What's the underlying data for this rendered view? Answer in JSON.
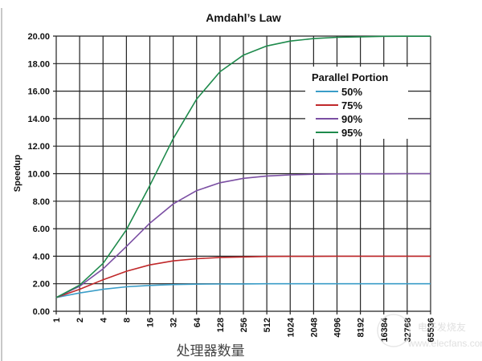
{
  "chart_data": {
    "type": "line",
    "title": "Amdahl’s Law",
    "xlabel": "处理器数量",
    "ylabel": "Speedup",
    "x": [
      1,
      2,
      4,
      8,
      16,
      32,
      64,
      128,
      256,
      512,
      1024,
      2048,
      4096,
      8192,
      16384,
      32768,
      65536
    ],
    "x_tick_labels": [
      "1",
      "2",
      "4",
      "8",
      "16",
      "32",
      "64",
      "128",
      "256",
      "512",
      "1024",
      "2048",
      "4096",
      "8192",
      "16384",
      "32768",
      "65536"
    ],
    "x_scale": "log2",
    "ylim": [
      0,
      20
    ],
    "y_ticks": [
      "0.00",
      "2.00",
      "4.00",
      "6.00",
      "8.00",
      "10.00",
      "12.00",
      "14.00",
      "16.00",
      "18.00",
      "20.00"
    ],
    "grid": true,
    "legend": {
      "title": "Parallel Portion",
      "position": "upper-right-inside"
    },
    "series": [
      {
        "name": "50%",
        "color": "#3a9dc8",
        "values": [
          1.0,
          1.33,
          1.6,
          1.78,
          1.88,
          1.94,
          1.97,
          1.98,
          1.99,
          2.0,
          2.0,
          2.0,
          2.0,
          2.0,
          2.0,
          2.0,
          2.0
        ]
      },
      {
        "name": "75%",
        "color": "#c0282a",
        "values": [
          1.0,
          1.6,
          2.29,
          2.91,
          3.37,
          3.66,
          3.82,
          3.91,
          3.95,
          3.98,
          3.99,
          3.99,
          4.0,
          4.0,
          4.0,
          4.0,
          4.0
        ]
      },
      {
        "name": "90%",
        "color": "#7b4fa3",
        "values": [
          1.0,
          1.82,
          3.08,
          4.71,
          6.4,
          7.8,
          8.77,
          9.34,
          9.66,
          9.83,
          9.91,
          9.96,
          9.98,
          9.99,
          9.99,
          10.0,
          10.0
        ]
      },
      {
        "name": "95%",
        "color": "#1e8a4c",
        "values": [
          1.0,
          1.9,
          3.48,
          5.93,
          9.14,
          12.55,
          15.42,
          17.41,
          18.62,
          19.28,
          19.64,
          19.82,
          19.91,
          19.95,
          19.98,
          19.99,
          19.99
        ]
      }
    ]
  },
  "watermark": {
    "text": "电子发烧友",
    "url_text": "www.elecfans.com"
  }
}
